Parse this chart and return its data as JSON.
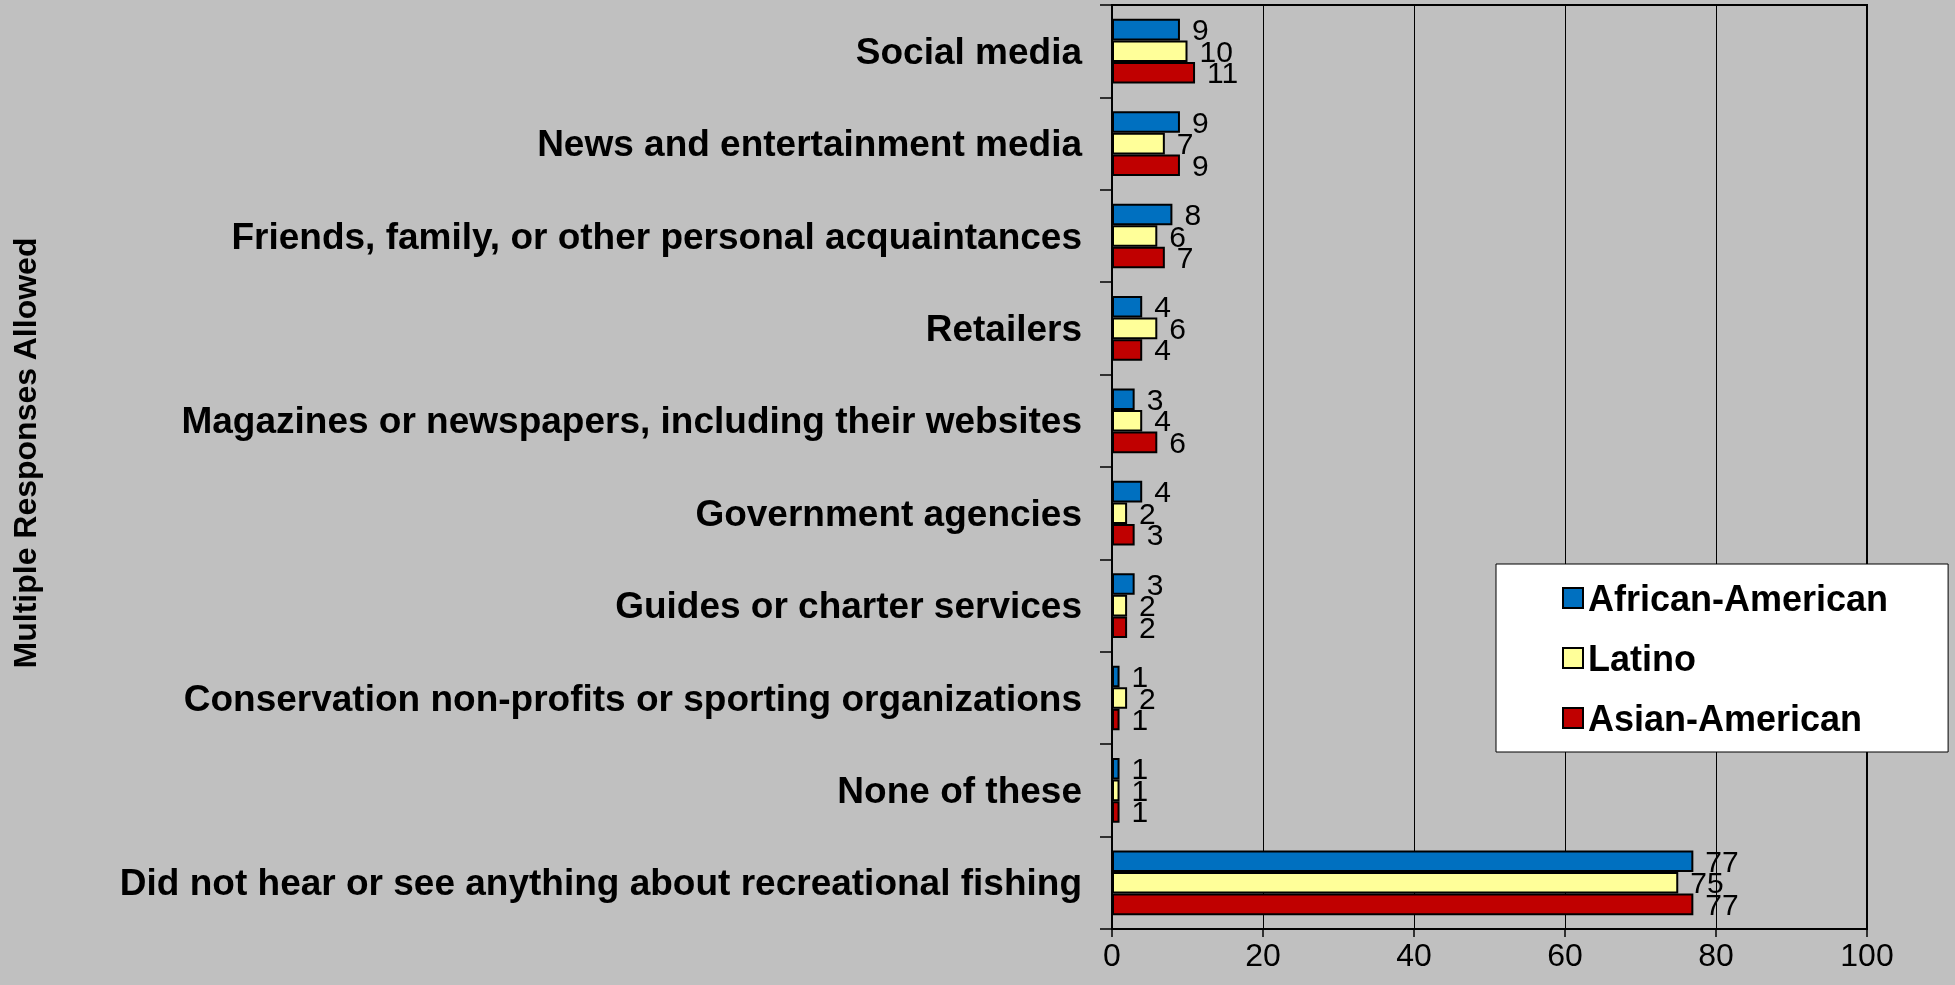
{
  "chart_data": {
    "type": "bar",
    "orientation": "horizontal",
    "annotations": [
      "Multiple Responses Allowed"
    ],
    "categories": [
      "Social media",
      "News and entertainment media",
      "Friends, family, or other personal acquaintances",
      "Retailers",
      "Magazines or newspapers, including their websites",
      "Government agencies",
      "Guides or charter services",
      "Conservation non-profits or sporting organizations",
      "None of these",
      "Did not hear or see anything about recreational fishing"
    ],
    "series": [
      {
        "name": "African-American",
        "color": "#0070c0",
        "values": [
          9,
          9,
          8,
          4,
          3,
          4,
          3,
          1,
          1,
          77
        ]
      },
      {
        "name": "Latino",
        "color": "#ffff99",
        "values": [
          10,
          7,
          6,
          6,
          4,
          2,
          2,
          2,
          1,
          75
        ]
      },
      {
        "name": "Asian-American",
        "color": "#c00000",
        "values": [
          11,
          9,
          7,
          4,
          6,
          3,
          2,
          1,
          1,
          77
        ]
      }
    ],
    "xlim": [
      0,
      100
    ],
    "xticks": [
      0,
      20,
      40,
      60,
      80,
      100
    ],
    "grid": "x",
    "legend": "right",
    "data_labels": true
  }
}
